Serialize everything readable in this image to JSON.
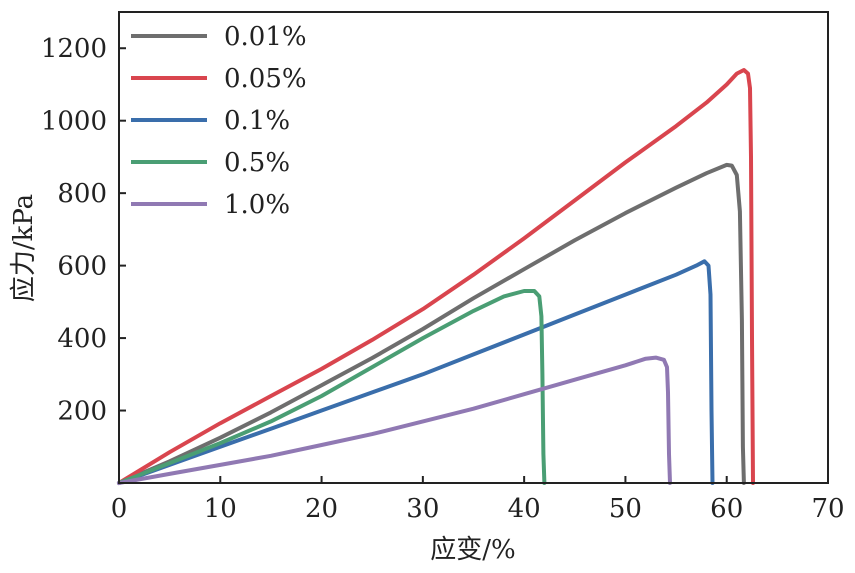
{
  "chart_data": {
    "type": "line",
    "title": "",
    "xlabel": "应变/%",
    "ylabel": "应力/kPa",
    "xlim": [
      0,
      70
    ],
    "ylim": [
      0,
      1300
    ],
    "xticks": [
      0,
      10,
      20,
      30,
      40,
      50,
      60,
      70
    ],
    "yticks": [
      200,
      400,
      600,
      800,
      1000,
      1200
    ],
    "grid": false,
    "legend_position": "top-left",
    "series": [
      {
        "name": "0.01%",
        "color": "#6e6e6e",
        "x": [
          0,
          5,
          10,
          15,
          20,
          25,
          30,
          35,
          40,
          45,
          50,
          55,
          58,
          60,
          60.5,
          61,
          61.3,
          61.5,
          61.6,
          61.7
        ],
        "y": [
          0,
          60,
          125,
          195,
          270,
          345,
          425,
          510,
          590,
          670,
          745,
          815,
          855,
          878,
          876,
          850,
          750,
          450,
          100,
          0
        ]
      },
      {
        "name": "0.05%",
        "color": "#d9454e",
        "x": [
          0,
          5,
          10,
          15,
          20,
          25,
          30,
          35,
          40,
          45,
          50,
          55,
          58,
          60,
          61,
          61.7,
          62.1,
          62.3,
          62.4,
          62.5,
          62.6
        ],
        "y": [
          0,
          85,
          165,
          240,
          315,
          395,
          480,
          575,
          675,
          780,
          885,
          985,
          1050,
          1100,
          1130,
          1140,
          1130,
          1090,
          900,
          400,
          0
        ]
      },
      {
        "name": "0.1%",
        "color": "#3a6eab",
        "x": [
          0,
          5,
          10,
          15,
          20,
          25,
          30,
          35,
          40,
          45,
          50,
          55,
          57,
          57.8,
          58.2,
          58.4,
          58.5,
          58.6
        ],
        "y": [
          0,
          50,
          100,
          150,
          200,
          250,
          300,
          355,
          410,
          465,
          520,
          575,
          600,
          612,
          600,
          520,
          200,
          0
        ]
      },
      {
        "name": "0.5%",
        "color": "#4a9e74",
        "x": [
          0,
          5,
          10,
          15,
          20,
          25,
          30,
          35,
          38,
          40,
          41,
          41.5,
          41.7,
          41.8,
          41.9,
          42
        ],
        "y": [
          0,
          55,
          110,
          170,
          240,
          320,
          400,
          475,
          515,
          530,
          530,
          515,
          460,
          300,
          80,
          0
        ]
      },
      {
        "name": "1.0%",
        "color": "#9079b3",
        "x": [
          0,
          5,
          10,
          15,
          20,
          25,
          30,
          35,
          40,
          45,
          50,
          52,
          53,
          53.8,
          54.1,
          54.2,
          54.3,
          54.4
        ],
        "y": [
          0,
          25,
          50,
          75,
          105,
          135,
          170,
          205,
          245,
          285,
          325,
          343,
          346,
          340,
          320,
          250,
          80,
          0
        ]
      }
    ]
  }
}
